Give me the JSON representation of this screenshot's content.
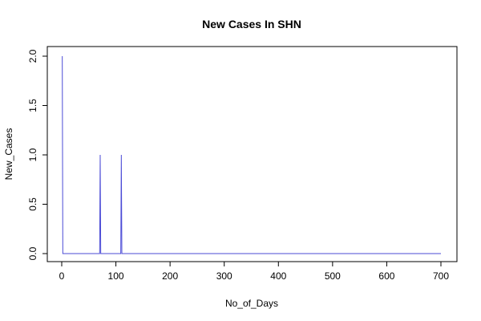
{
  "chart_data": {
    "type": "line",
    "title": "New Cases In SHN",
    "xlabel": "No_of_Days",
    "ylabel": "New_Cases",
    "xlim": [
      0,
      700
    ],
    "ylim": [
      0,
      2
    ],
    "x_ticks": [
      0,
      100,
      200,
      300,
      400,
      500,
      600,
      700
    ],
    "x_tick_labels": [
      "0",
      "100",
      "200",
      "300",
      "400",
      "500",
      "600",
      "700"
    ],
    "y_ticks": [
      0,
      0.5,
      1,
      1.5,
      2
    ],
    "y_tick_labels": [
      "0.0",
      "0.5",
      "1.0",
      "1.5",
      "2.0"
    ],
    "grid": false,
    "legend": "none",
    "series": [
      {
        "color": "#4b4bd6",
        "points": [
          [
            1,
            2
          ],
          [
            2,
            0
          ],
          [
            70,
            0
          ],
          [
            71,
            1
          ],
          [
            72,
            0
          ],
          [
            109,
            0
          ],
          [
            110,
            1
          ],
          [
            111,
            0
          ],
          [
            700,
            0
          ]
        ]
      }
    ]
  }
}
